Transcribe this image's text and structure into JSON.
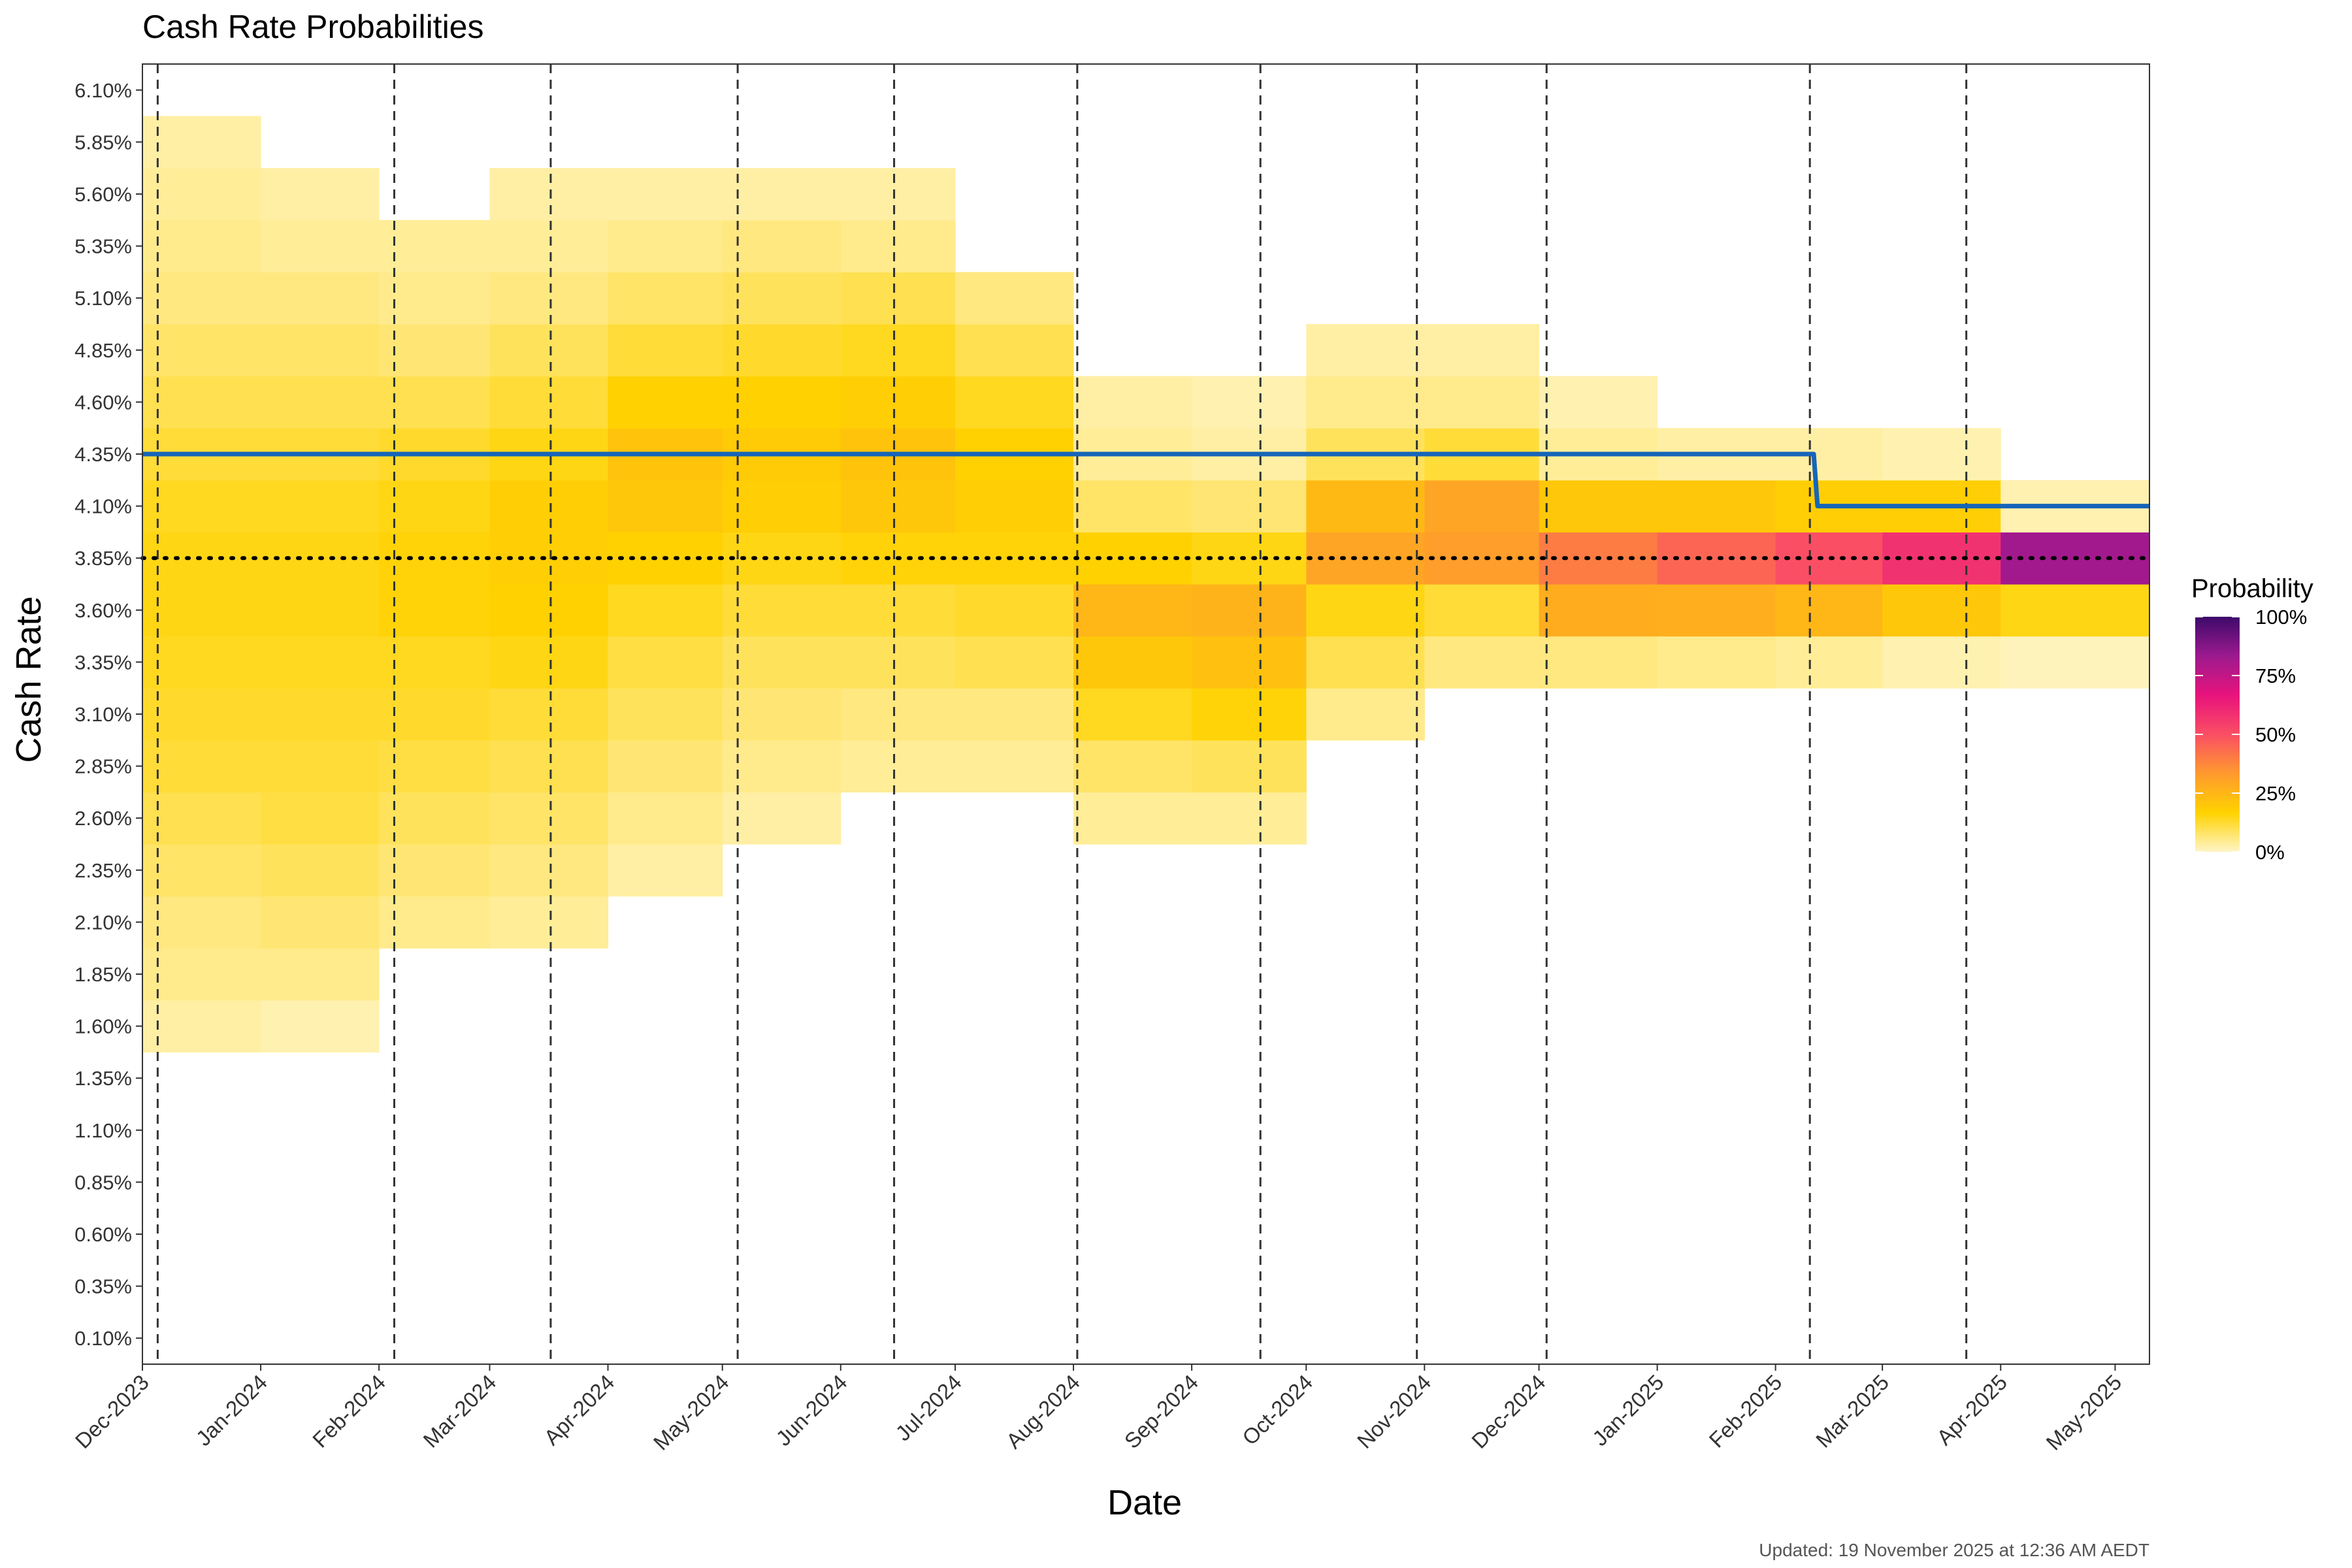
{
  "chart_data": {
    "type": "heatmap",
    "title": "Cash Rate Probabilities",
    "xlabel": "Date",
    "ylabel": "Cash Rate",
    "caption": "Updated: 19 November 2025 at 12:36 AM AEDT",
    "x_tick_labels": [
      "Dec-2023",
      "Jan-2024",
      "Feb-2024",
      "Mar-2024",
      "Apr-2024",
      "May-2024",
      "Jun-2024",
      "Jul-2024",
      "Aug-2024",
      "Sep-2024",
      "Oct-2024",
      "Nov-2024",
      "Dec-2024",
      "Jan-2025",
      "Feb-2025",
      "Mar-2025",
      "Apr-2025",
      "May-2025"
    ],
    "xlim_days": [
      0,
      526
    ],
    "x_tick_days": [
      0,
      31,
      62,
      91,
      122,
      152,
      183,
      213,
      244,
      275,
      305,
      336,
      366,
      397,
      428,
      456,
      487,
      517
    ],
    "y_tick_labels": [
      "0.10%",
      "0.35%",
      "0.60%",
      "0.85%",
      "1.10%",
      "1.35%",
      "1.60%",
      "1.85%",
      "2.10%",
      "2.35%",
      "2.60%",
      "2.85%",
      "3.10%",
      "3.35%",
      "3.60%",
      "3.85%",
      "4.10%",
      "4.35%",
      "4.60%",
      "4.85%",
      "5.10%",
      "5.35%",
      "5.60%",
      "5.85%",
      "6.10%"
    ],
    "ylim": [
      -0.025,
      6.225
    ],
    "rba_meeting_days": [
      4,
      66,
      107,
      156,
      197,
      245,
      293,
      334,
      368,
      437,
      478
    ],
    "current_cash_rate": {
      "name": "Current cash rate",
      "steps": [
        [
          0,
          4.35
        ],
        [
          438,
          4.35
        ],
        [
          439,
          4.1
        ],
        [
          526,
          4.1
        ]
      ],
      "color": "#1565b8"
    },
    "reference_rate": 3.85,
    "heatmap_rates": [
      1.6,
      1.85,
      2.1,
      2.35,
      2.6,
      2.85,
      3.1,
      3.35,
      3.6,
      3.85,
      4.1,
      4.35,
      4.6,
      4.85,
      5.1,
      5.35,
      5.6,
      5.85
    ],
    "heatmap_columns": [
      {
        "start": 0,
        "end": 31,
        "probs": [
          0.03,
          0.05,
          0.06,
          0.08,
          0.1,
          0.12,
          0.13,
          0.14,
          0.15,
          0.15,
          0.14,
          0.12,
          0.1,
          0.08,
          0.06,
          0.05,
          0.04,
          0.03
        ]
      },
      {
        "start": 31,
        "end": 62,
        "probs": [
          0.02,
          0.05,
          0.07,
          0.09,
          0.11,
          0.12,
          0.13,
          0.14,
          0.15,
          0.15,
          0.14,
          0.12,
          0.1,
          0.08,
          0.06,
          0.04,
          0.03,
          0
        ]
      },
      {
        "start": 62,
        "end": 91,
        "probs": [
          0,
          0,
          0.05,
          0.07,
          0.09,
          0.11,
          0.13,
          0.14,
          0.16,
          0.16,
          0.15,
          0.13,
          0.1,
          0.07,
          0.05,
          0.04,
          0,
          0
        ]
      },
      {
        "start": 91,
        "end": 122,
        "probs": [
          0,
          0,
          0.04,
          0.06,
          0.08,
          0.1,
          0.12,
          0.15,
          0.17,
          0.18,
          0.18,
          0.15,
          0.12,
          0.09,
          0.06,
          0.04,
          0.03,
          0
        ]
      },
      {
        "start": 122,
        "end": 152,
        "probs": [
          0,
          0,
          0,
          0.03,
          0.05,
          0.07,
          0.09,
          0.11,
          0.14,
          0.17,
          0.2,
          0.21,
          0.17,
          0.12,
          0.08,
          0.05,
          0.03,
          0
        ]
      },
      {
        "start": 152,
        "end": 183,
        "probs": [
          0,
          0,
          0,
          0,
          0.03,
          0.05,
          0.07,
          0.09,
          0.12,
          0.15,
          0.18,
          0.19,
          0.17,
          0.13,
          0.09,
          0.06,
          0.03,
          0
        ]
      },
      {
        "start": 183,
        "end": 213,
        "probs": [
          0,
          0,
          0,
          0,
          0,
          0.04,
          0.06,
          0.09,
          0.12,
          0.16,
          0.2,
          0.21,
          0.18,
          0.14,
          0.1,
          0.05,
          0.03,
          0
        ]
      },
      {
        "start": 213,
        "end": 244,
        "probs": [
          0,
          0,
          0,
          0,
          0,
          0.04,
          0.06,
          0.1,
          0.13,
          0.16,
          0.18,
          0.17,
          0.14,
          0.1,
          0.06,
          0,
          0,
          0
        ]
      },
      {
        "start": 244,
        "end": 275,
        "probs": [
          0,
          0,
          0,
          0,
          0.04,
          0.08,
          0.14,
          0.2,
          0.25,
          0.17,
          0.08,
          0.04,
          0.03,
          0,
          0,
          0,
          0,
          0
        ]
      },
      {
        "start": 275,
        "end": 305,
        "probs": [
          0,
          0,
          0,
          0,
          0.04,
          0.09,
          0.16,
          0.22,
          0.26,
          0.15,
          0.07,
          0.03,
          0.02,
          0,
          0,
          0,
          0,
          0
        ]
      },
      {
        "start": 305,
        "end": 336,
        "probs": [
          0,
          0,
          0,
          0,
          0,
          0,
          0.05,
          0.1,
          0.15,
          0.3,
          0.24,
          0.09,
          0.05,
          0.03,
          0,
          0,
          0,
          0
        ]
      },
      {
        "start": 336,
        "end": 366,
        "probs": [
          0,
          0,
          0,
          0,
          0,
          0,
          0,
          0.06,
          0.12,
          0.32,
          0.3,
          0.12,
          0.05,
          0.03,
          0,
          0,
          0,
          0
        ]
      },
      {
        "start": 366,
        "end": 397,
        "probs": [
          0,
          0,
          0,
          0,
          0,
          0,
          0,
          0.06,
          0.28,
          0.4,
          0.2,
          0.04,
          0.02,
          0,
          0,
          0,
          0,
          0
        ]
      },
      {
        "start": 397,
        "end": 428,
        "probs": [
          0,
          0,
          0,
          0,
          0,
          0,
          0,
          0.05,
          0.27,
          0.45,
          0.2,
          0.03,
          0,
          0,
          0,
          0,
          0,
          0
        ]
      },
      {
        "start": 428,
        "end": 456,
        "probs": [
          0,
          0,
          0,
          0,
          0,
          0,
          0,
          0.04,
          0.25,
          0.5,
          0.18,
          0.03,
          0,
          0,
          0,
          0,
          0,
          0
        ]
      },
      {
        "start": 456,
        "end": 487,
        "probs": [
          0,
          0,
          0,
          0,
          0,
          0,
          0,
          0.02,
          0.2,
          0.58,
          0.18,
          0.02,
          0,
          0,
          0,
          0,
          0,
          0
        ]
      },
      {
        "start": 487,
        "end": 526,
        "probs": [
          0,
          0,
          0,
          0,
          0,
          0,
          0,
          0.01,
          0.15,
          0.82,
          0.02,
          0,
          0,
          0,
          0,
          0,
          0,
          0
        ]
      }
    ],
    "legend": {
      "title": "Probability",
      "ticks": [
        "100%",
        "75%",
        "50%",
        "25%",
        "0%"
      ],
      "tick_values": [
        1.0,
        0.75,
        0.5,
        0.25,
        0.0
      ],
      "colors": [
        "#fff5c8",
        "#ffd200",
        "#ff9a2e",
        "#fa4e64",
        "#e8137c",
        "#9c1a8e",
        "#3d0a6b"
      ]
    },
    "grid": false
  }
}
